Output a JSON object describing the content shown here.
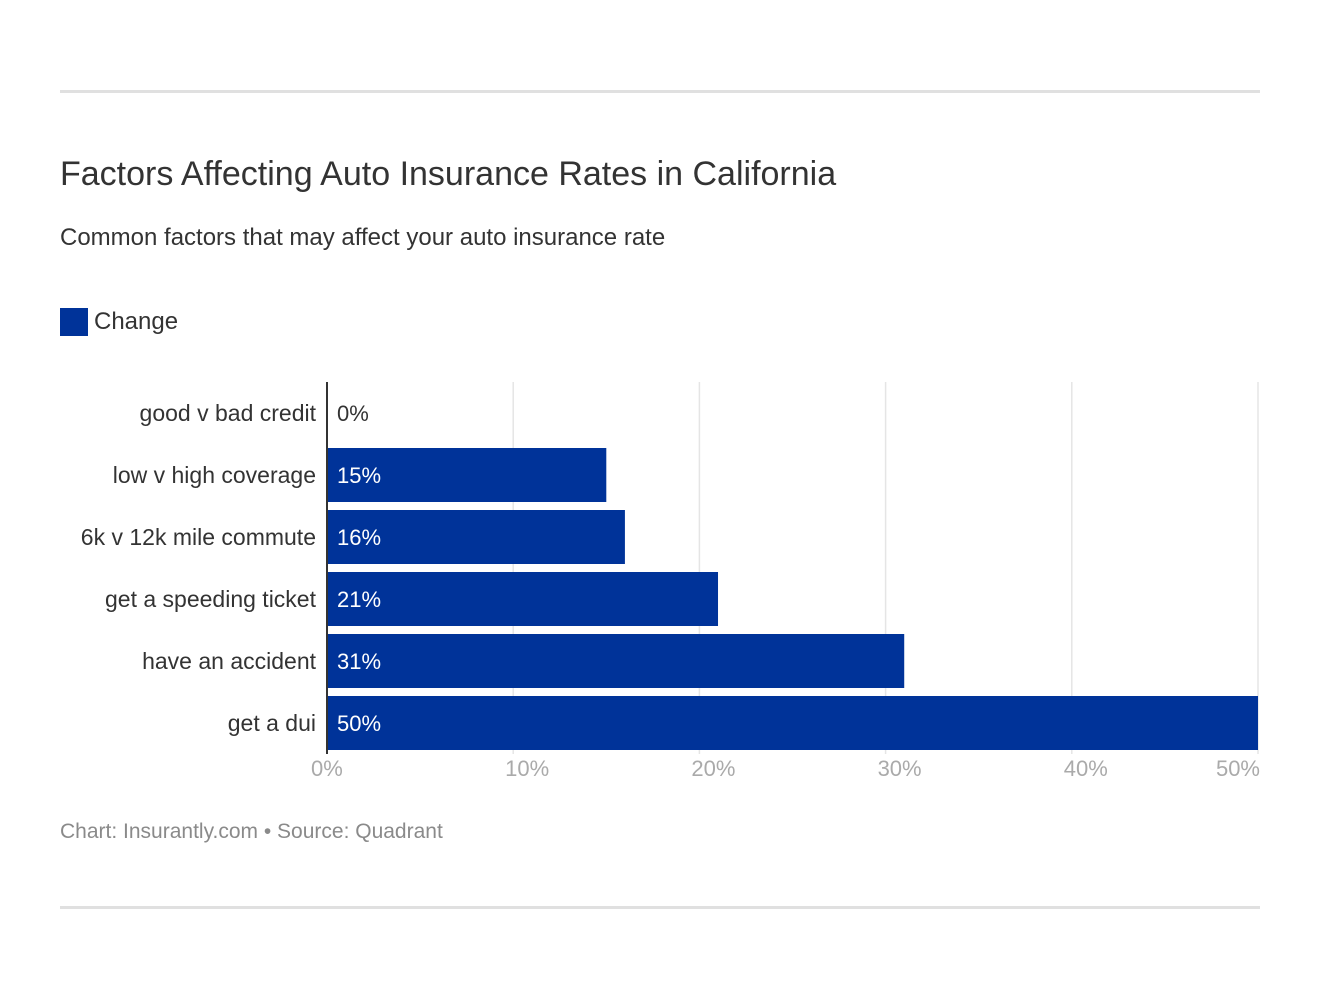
{
  "colors": {
    "bar": "#003399",
    "grid": "#e5e5e5",
    "axis": "#333333",
    "tick": "#aaaaaa"
  },
  "chart_data": {
    "type": "bar",
    "orientation": "horizontal",
    "title": "Factors Affecting Auto Insurance Rates in California",
    "subtitle": "Common factors that may affect your auto insurance rate",
    "categories": [
      "good v bad credit",
      "low v high coverage",
      "6k v 12k mile commute",
      "get a speeding ticket",
      "have an accident",
      "get a dui"
    ],
    "series": [
      {
        "name": "Change",
        "values": [
          0,
          15,
          16,
          21,
          31,
          50
        ]
      }
    ],
    "data_labels": [
      "0%",
      "15%",
      "16%",
      "21%",
      "31%",
      "50%"
    ],
    "xlim": [
      0,
      50
    ],
    "xticks": [
      0,
      10,
      20,
      30,
      40,
      50
    ],
    "xtick_labels": [
      "0%",
      "10%",
      "20%",
      "30%",
      "40%",
      "50%"
    ],
    "grid": true,
    "legend": "top-left"
  },
  "footer": "Chart: Insurantly.com • Source: Quadrant"
}
